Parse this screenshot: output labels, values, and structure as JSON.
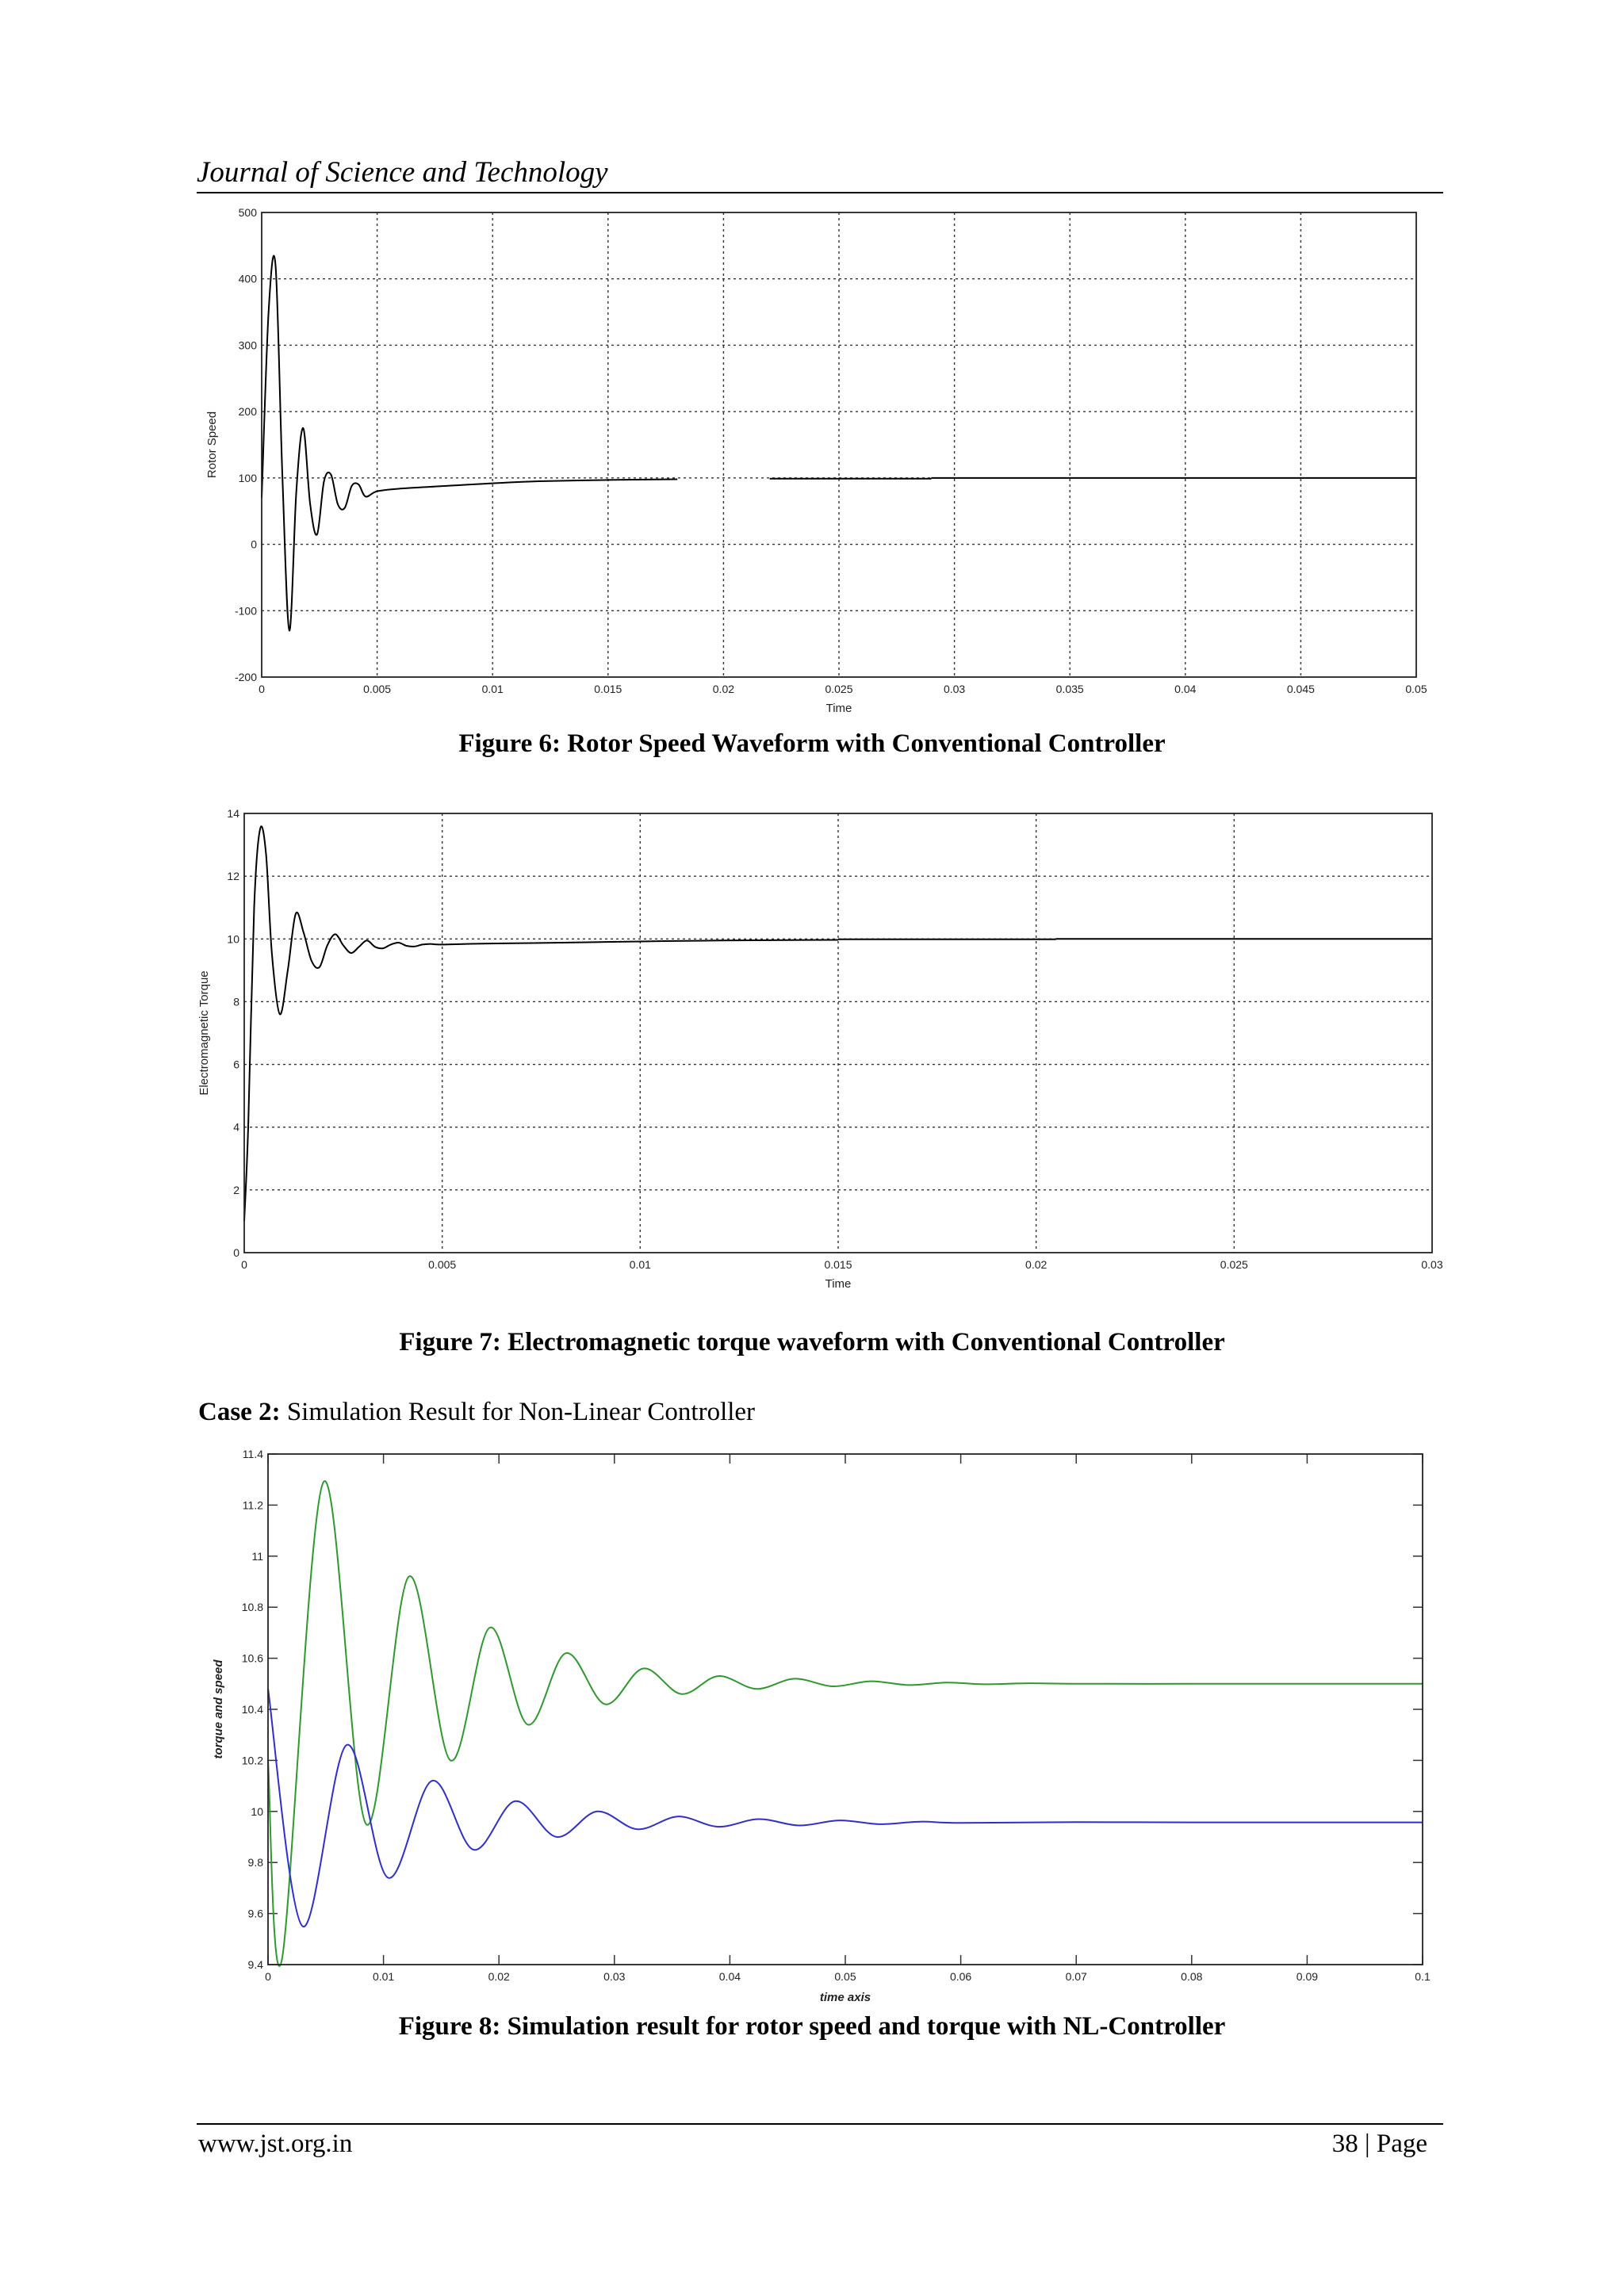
{
  "header": {
    "journal_title": "Journal of Science and Technology"
  },
  "figures": [
    {
      "caption": "Figure 6: Rotor Speed Waveform with Conventional Controller"
    },
    {
      "caption": "Figure 7: Electromagnetic torque waveform with Conventional Controller"
    },
    {
      "caption": "Figure 8: Simulation result for rotor speed and torque with NL-Controller"
    }
  ],
  "case_heading": {
    "label": "Case 2:",
    "text": " Simulation Result for Non-Linear Controller"
  },
  "footer": {
    "url": "www.jst.org.in",
    "page": "38 | Page"
  },
  "chart_data": [
    {
      "type": "line",
      "title": "",
      "xlabel": "Time",
      "ylabel": "Rotor Speed",
      "xlim": [
        0,
        0.05
      ],
      "ylim": [
        -200,
        500
      ],
      "xticks": [
        0,
        0.005,
        0.01,
        0.015,
        0.02,
        0.025,
        0.03,
        0.035,
        0.04,
        0.045,
        0.05
      ],
      "xtick_labels": [
        "0",
        "0.005",
        "0.01",
        "0.015",
        "0.02",
        "0.025",
        "0.03",
        "0.035",
        "0.04",
        "0.045",
        "0.05"
      ],
      "yticks": [
        -200,
        -100,
        0,
        100,
        200,
        300,
        400,
        500
      ],
      "ytick_labels": [
        "-200",
        "-100",
        "0",
        "100",
        "200",
        "300",
        "400",
        "500"
      ],
      "grid": true,
      "line_color": "#000000",
      "series": [
        {
          "x": [
            0,
            0.0003,
            0.0006,
            0.0009,
            0.0012,
            0.0015,
            0.0018,
            0.0021,
            0.0024,
            0.0027,
            0.003,
            0.0033,
            0.0036,
            0.0039,
            0.0042,
            0.0045,
            0.005,
            0.006,
            0.008,
            0.01,
            0.012,
            0.015,
            0.018
          ],
          "y": [
            70,
            350,
            420,
            100,
            -130,
            80,
            175,
            60,
            15,
            95,
            105,
            60,
            55,
            88,
            90,
            72,
            80,
            84,
            88,
            92,
            95,
            97,
            98
          ]
        },
        {
          "x": [
            0.022,
            0.029
          ],
          "y": [
            99,
            99
          ]
        },
        {
          "x": [
            0.029,
            0.05
          ],
          "y": [
            100,
            100
          ]
        }
      ]
    },
    {
      "type": "line",
      "title": "",
      "xlabel": "Time",
      "ylabel": "Electromagnetic Torque",
      "xlim": [
        0,
        0.03
      ],
      "ylim": [
        0,
        14
      ],
      "xticks": [
        0,
        0.005,
        0.01,
        0.015,
        0.02,
        0.025,
        0.03
      ],
      "xtick_labels": [
        "0",
        "0.005",
        "0.01",
        "0.015",
        "0.02",
        "0.025",
        "0.03"
      ],
      "yticks": [
        0,
        2,
        4,
        6,
        8,
        10,
        12,
        14
      ],
      "ytick_labels": [
        "0",
        "2",
        "4",
        "6",
        "8",
        "10",
        "12",
        "14"
      ],
      "grid": true,
      "line_color": "#000000",
      "series": [
        {
          "x": [
            0,
            0.0001,
            0.00025,
            0.0004,
            0.00055,
            0.0007,
            0.0009,
            0.0011,
            0.0013,
            0.0015,
            0.0017,
            0.0019,
            0.0021,
            0.0023,
            0.0025,
            0.0027,
            0.0029,
            0.0031,
            0.0033,
            0.0035,
            0.0037,
            0.0039,
            0.0041,
            0.0043,
            0.0045,
            0.0047,
            0.005,
            0.006,
            0.008,
            0.01,
            0.012,
            0.015
          ],
          "y": [
            1,
            4,
            11,
            13.5,
            12.7,
            9.5,
            7.6,
            9.0,
            10.8,
            10.2,
            9.3,
            9.1,
            9.8,
            10.15,
            9.8,
            9.55,
            9.75,
            9.95,
            9.75,
            9.7,
            9.82,
            9.88,
            9.78,
            9.76,
            9.82,
            9.84,
            9.82,
            9.85,
            9.88,
            9.92,
            9.95,
            9.97
          ]
        },
        {
          "x": [
            0.015,
            0.0205
          ],
          "y": [
            9.99,
            9.99
          ]
        },
        {
          "x": [
            0.0205,
            0.03
          ],
          "y": [
            10,
            10
          ]
        }
      ]
    },
    {
      "type": "line",
      "title": "",
      "xlabel": "time axis",
      "ylabel": "torque and speed",
      "xlim": [
        0,
        0.1
      ],
      "ylim": [
        9.4,
        11.4
      ],
      "xticks": [
        0,
        0.01,
        0.02,
        0.03,
        0.04,
        0.05,
        0.06,
        0.07,
        0.08,
        0.09,
        0.1
      ],
      "xtick_labels": [
        "0",
        "0.01",
        "0.02",
        "0.03",
        "0.04",
        "0.05",
        "0.06",
        "0.07",
        "0.08",
        "0.09",
        "0.1"
      ],
      "yticks": [
        9.4,
        9.6,
        9.8,
        10,
        10.2,
        10.4,
        10.6,
        10.8,
        11,
        11.2,
        11.4
      ],
      "ytick_labels": [
        "9.4",
        "9.6",
        "9.8",
        "10",
        "10.2",
        "10.4",
        "10.6",
        "10.8",
        "11",
        "11.2",
        "11.4"
      ],
      "grid": false,
      "series": [
        {
          "color": "#2e9a2e",
          "x": [
            0,
            0.0012,
            0.0048,
            0.0085,
            0.0122,
            0.0158,
            0.0192,
            0.0225,
            0.0258,
            0.0292,
            0.0325,
            0.0358,
            0.039,
            0.0423,
            0.0456,
            0.0489,
            0.0522,
            0.0555,
            0.0588,
            0.062,
            0.0655,
            0.07,
            0.08,
            0.09,
            0.1
          ],
          "y": [
            10.2,
            9.42,
            11.29,
            9.95,
            10.92,
            10.2,
            10.72,
            10.34,
            10.62,
            10.42,
            10.56,
            10.46,
            10.53,
            10.48,
            10.52,
            10.49,
            10.51,
            10.495,
            10.505,
            10.498,
            10.502,
            10.5,
            10.5,
            10.5,
            10.5
          ]
        },
        {
          "color": "#2f2fd0",
          "x": [
            0,
            0.003,
            0.0068,
            0.0104,
            0.0142,
            0.0178,
            0.0214,
            0.025,
            0.0285,
            0.032,
            0.0355,
            0.039,
            0.0425,
            0.046,
            0.0495,
            0.053,
            0.0565,
            0.06,
            0.07,
            0.08,
            0.09,
            0.1
          ],
          "y": [
            10.48,
            9.55,
            10.26,
            9.74,
            10.12,
            9.85,
            10.04,
            9.9,
            10.0,
            9.93,
            9.98,
            9.94,
            9.97,
            9.945,
            9.965,
            9.95,
            9.96,
            9.955,
            9.958,
            9.957,
            9.957,
            9.957
          ]
        }
      ]
    }
  ]
}
